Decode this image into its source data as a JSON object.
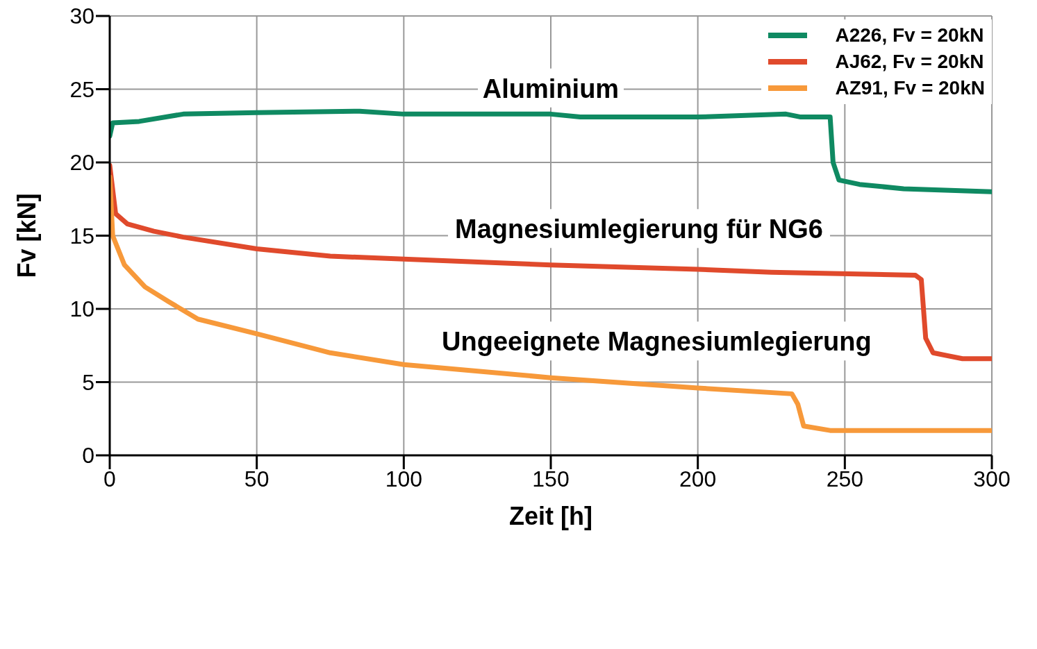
{
  "chart_data": {
    "type": "line",
    "xlabel": "Zeit [h]",
    "ylabel": "Fv [kN]",
    "xlim": [
      0,
      300
    ],
    "ylim": [
      0,
      30
    ],
    "xticks": [
      0,
      50,
      100,
      150,
      200,
      250,
      300
    ],
    "yticks": [
      0,
      5,
      10,
      15,
      20,
      25,
      30
    ],
    "grid": true,
    "legend": "top right",
    "marker": "none",
    "line_style": "solid",
    "series": [
      {
        "name": "A226, Fv = 20kN",
        "color": "#0f8a62",
        "x": [
          0,
          1,
          10,
          25,
          50,
          85,
          100,
          150,
          160,
          200,
          230,
          235,
          245,
          246,
          248,
          255,
          270,
          300
        ],
        "values": [
          21.8,
          22.7,
          22.8,
          23.3,
          23.4,
          23.5,
          23.3,
          23.3,
          23.1,
          23.1,
          23.3,
          23.1,
          23.1,
          20,
          18.8,
          18.5,
          18.2,
          18
        ]
      },
      {
        "name": "AJ62, Fv = 20kN",
        "color": "#e04a2c",
        "x": [
          0,
          2,
          6,
          15,
          25,
          50,
          75,
          100,
          150,
          200,
          225,
          274,
          276,
          277.5,
          280,
          290,
          300
        ],
        "values": [
          19.8,
          16.5,
          15.8,
          15.3,
          14.9,
          14.1,
          13.6,
          13.4,
          13,
          12.7,
          12.5,
          12.3,
          12,
          8,
          7,
          6.6,
          6.6
        ]
      },
      {
        "name": "AZ91, Fv = 20kN",
        "color": "#f7993a",
        "x": [
          0,
          1,
          5,
          12,
          20,
          30,
          50,
          75,
          100,
          150,
          200,
          232,
          234,
          236,
          245,
          300
        ],
        "values": [
          19,
          15,
          13,
          11.5,
          10.5,
          9.3,
          8.3,
          7,
          6.2,
          5.3,
          4.6,
          4.2,
          3.5,
          2,
          1.7,
          1.7
        ]
      }
    ],
    "annotations": [
      "Aluminium",
      "Magnesiumlegierung für NG6",
      "Ungeeignete Magnesiumlegierung"
    ]
  }
}
